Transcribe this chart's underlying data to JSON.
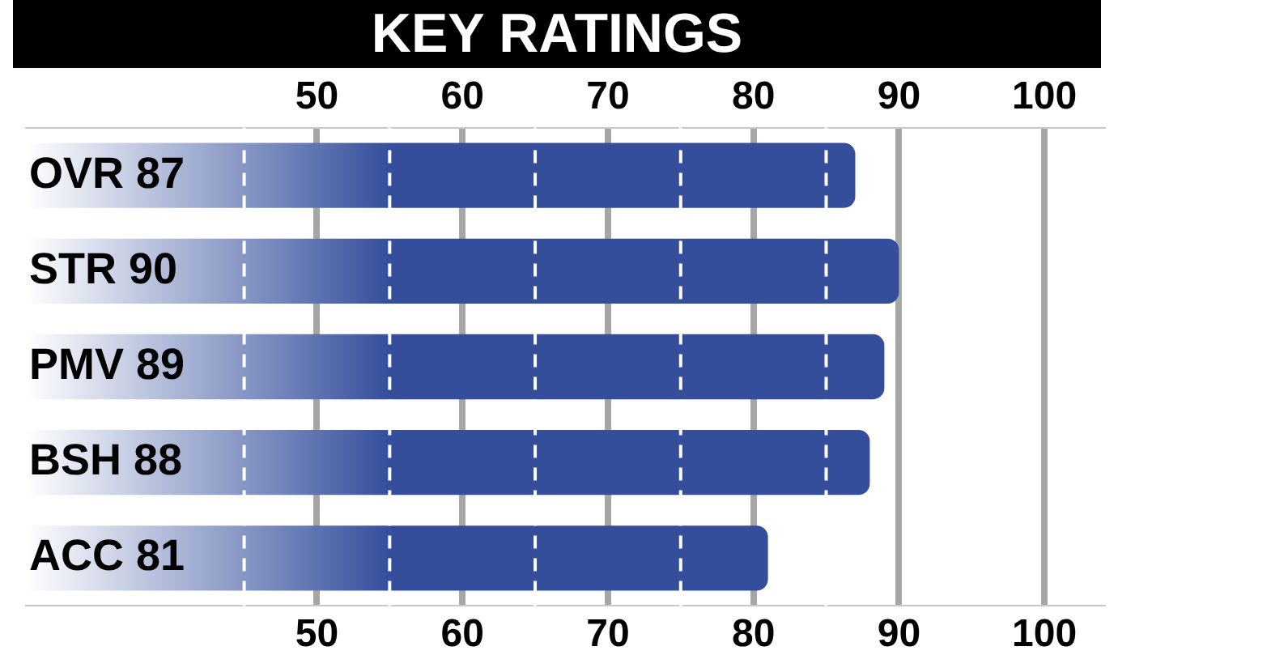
{
  "chart_data": {
    "type": "bar",
    "orientation": "horizontal",
    "title": "KEY RATINGS",
    "categories": [
      "OVR 87",
      "STR 90",
      "PMV 89",
      "BSH 88",
      "ACC 81"
    ],
    "values": [
      87,
      90,
      89,
      88,
      81
    ],
    "color": "#344e9c",
    "xlim": [
      30,
      104
    ],
    "xticks": [
      {
        "value": 45,
        "label": null
      },
      50,
      {
        "value": 55,
        "label": null
      },
      60,
      {
        "value": 65,
        "label": null
      },
      70,
      {
        "value": 75,
        "label": null
      },
      80,
      {
        "value": 85,
        "label": null
      },
      90,
      100
    ],
    "x2lim": [
      30,
      104
    ],
    "x2ticks": [
      50,
      60,
      70,
      80,
      90,
      100
    ],
    "grid": "x",
    "legend": false
  }
}
